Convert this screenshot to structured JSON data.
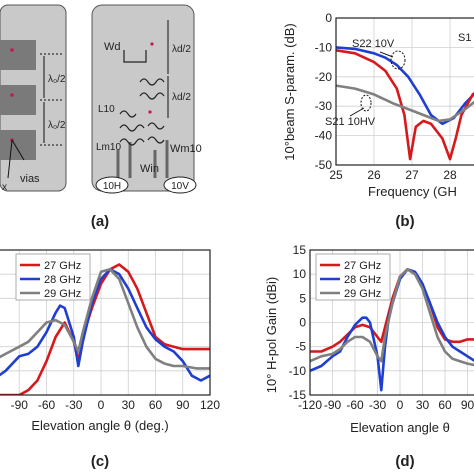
{
  "captions": {
    "a": "(a)",
    "b": "(b)",
    "c": "(c)",
    "d": "(d)"
  },
  "panel_a": {
    "left_labels": {
      "spacing_1": "λ₀/2",
      "spacing_2": "λ₀/2",
      "via_prefix": "x",
      "via_label": "vias"
    },
    "right_labels": {
      "wd": "Wd",
      "lambda1": "λd/2",
      "lambda2": "λd/2",
      "l10": "L10",
      "lm10": "Lm10",
      "wm10": "Wm10",
      "win": "Win",
      "port_h": "10H",
      "port_v": "10V"
    }
  },
  "chart_data": [
    {
      "id": "b",
      "type": "line",
      "title": "",
      "xlabel": "Frequency (GH",
      "ylabel": "10°beam S-param. (dB)",
      "xlim": [
        25,
        29
      ],
      "ylim": [
        -50,
        0
      ],
      "xticks": [
        "25",
        "26",
        "27",
        "28"
      ],
      "yticks": [
        "0",
        "-10",
        "-20",
        "-30",
        "-40",
        "-50"
      ],
      "grid": true,
      "annotations": [
        "S22 10V",
        "S21 10HV",
        "S1"
      ],
      "series": [
        {
          "color": "#1f3fd1",
          "x": [
            25,
            25.5,
            26,
            26.3,
            26.6,
            26.9,
            27.2,
            27.5,
            27.8,
            28.1,
            28.4,
            28.7,
            29
          ],
          "y": [
            -10,
            -10.5,
            -12,
            -13.5,
            -16,
            -20,
            -26,
            -33,
            -36,
            -34,
            -29,
            -25,
            -23
          ]
        },
        {
          "color": "#d7191c",
          "x": [
            25,
            25.5,
            26,
            26.3,
            26.6,
            26.8,
            26.95,
            27.1,
            27.3,
            27.5,
            27.8,
            28,
            28.15,
            28.3,
            28.6,
            29
          ],
          "y": [
            -11,
            -12,
            -15,
            -18,
            -24,
            -33,
            -48,
            -37,
            -35,
            -36,
            -41,
            -48,
            -41,
            -33,
            -26,
            -22
          ]
        },
        {
          "color": "#808080",
          "x": [
            25,
            25.5,
            26,
            26.5,
            26.9,
            27.3,
            27.7,
            28,
            28.4,
            28.8,
            29
          ],
          "y": [
            -23,
            -24,
            -26,
            -29,
            -31,
            -33,
            -35,
            -34.5,
            -31,
            -27,
            -25
          ]
        }
      ]
    },
    {
      "id": "c",
      "type": "line",
      "title": "",
      "xlabel": "Elevation angle θ (deg.)",
      "ylabel": "",
      "xlim": [
        -120,
        120
      ],
      "ylim": [
        -15,
        15
      ],
      "xticks": [
        "-90",
        "-60",
        "-30",
        "0",
        "30",
        "60",
        "90",
        "120"
      ],
      "grid": true,
      "legend": "top-left",
      "series": [
        {
          "name": "27 GHz",
          "color": "#d7191c",
          "x": [
            -120,
            -105,
            -90,
            -80,
            -70,
            -60,
            -50,
            -40,
            -30,
            -25,
            -20,
            -10,
            0,
            10,
            20,
            30,
            40,
            50,
            60,
            70,
            80,
            90,
            105,
            120
          ],
          "y": [
            -15,
            -15,
            -15,
            -14,
            -12,
            -8,
            -3,
            0,
            -4,
            -8,
            -3,
            3,
            8,
            11,
            12,
            10.5,
            7,
            2,
            -3,
            -4.5,
            -5,
            -5.5,
            -5.5,
            -5.5
          ]
        },
        {
          "name": "28 GHz",
          "color": "#1f3fd1",
          "x": [
            -120,
            -105,
            -90,
            -80,
            -70,
            -60,
            -50,
            -45,
            -40,
            -30,
            -25,
            -20,
            -10,
            0,
            10,
            20,
            30,
            40,
            50,
            60,
            70,
            80,
            90,
            100,
            110,
            120
          ],
          "y": [
            -12,
            -10,
            -7,
            -6.5,
            -5,
            -2,
            2,
            3.5,
            3,
            -3,
            -9,
            -4,
            4,
            9,
            11,
            10,
            7,
            3,
            -1,
            -3.5,
            -5,
            -6,
            -8,
            -11,
            -12,
            -11
          ]
        },
        {
          "name": "29 GHz",
          "color": "#808080",
          "x": [
            -120,
            -105,
            -90,
            -80,
            -70,
            -60,
            -50,
            -40,
            -30,
            -25,
            -20,
            -10,
            0,
            10,
            20,
            30,
            40,
            50,
            60,
            70,
            80,
            90,
            105,
            120
          ],
          "y": [
            -8,
            -6.5,
            -5,
            -4,
            -2,
            0,
            0.5,
            -0.5,
            -4,
            -6,
            -2,
            5,
            10.5,
            11,
            9,
            4,
            -1,
            -5,
            -7.5,
            -8.5,
            -9,
            -9,
            -9.5,
            -9.5
          ]
        }
      ]
    },
    {
      "id": "d",
      "type": "line",
      "title": "",
      "xlabel": "Elevation angle θ",
      "ylabel": "10° H-pol Gain (dBi)",
      "xlim": [
        -120,
        120
      ],
      "ylim": [
        -15,
        15
      ],
      "xticks": [
        "-120",
        "-90",
        "-60",
        "-30",
        "0",
        "30",
        "60",
        "90"
      ],
      "yticks": [
        "15",
        "10",
        "5",
        "0",
        "-5",
        "-10",
        "-15"
      ],
      "grid": true,
      "legend": "top-left",
      "series": [
        {
          "name": "27 GHz",
          "color": "#d7191c",
          "x": [
            -120,
            -105,
            -90,
            -80,
            -70,
            -60,
            -50,
            -40,
            -30,
            -25,
            -20,
            -10,
            0,
            10,
            20,
            30,
            40,
            50,
            60,
            70,
            80,
            90,
            105,
            120
          ],
          "y": [
            -6,
            -6,
            -5,
            -4,
            -2.5,
            -1,
            -0.5,
            -1,
            -3,
            -4,
            -1,
            5,
            9.5,
            11,
            10,
            7.5,
            4,
            -1,
            -3.5,
            -4,
            -4,
            -3.5,
            -3.5,
            -3.5
          ]
        },
        {
          "name": "28 GHz",
          "color": "#1f3fd1",
          "x": [
            -120,
            -105,
            -90,
            -80,
            -70,
            -60,
            -50,
            -45,
            -40,
            -30,
            -25,
            -20,
            -15,
            -10,
            0,
            10,
            20,
            30,
            40,
            50,
            60,
            70,
            80,
            90,
            105,
            120
          ],
          "y": [
            -10,
            -9,
            -7,
            -6,
            -3,
            -0.5,
            1,
            1,
            0,
            -7,
            -14,
            -5,
            1,
            4,
            9,
            11,
            10.5,
            8,
            4,
            0,
            -3,
            -5,
            -6,
            -7,
            -8.5,
            -9
          ]
        },
        {
          "name": "29 GHz",
          "color": "#808080",
          "x": [
            -120,
            -105,
            -90,
            -80,
            -70,
            -60,
            -50,
            -40,
            -30,
            -25,
            -20,
            -10,
            0,
            10,
            20,
            30,
            40,
            50,
            60,
            70,
            80,
            90,
            105,
            120
          ],
          "y": [
            -8,
            -7,
            -6.5,
            -5.5,
            -4,
            -3,
            -3,
            -4,
            -7,
            -8,
            -3,
            4,
            9.5,
            11,
            10,
            7,
            2,
            -3,
            -6,
            -7.5,
            -8,
            -8.5,
            -9,
            -9
          ]
        }
      ]
    }
  ]
}
